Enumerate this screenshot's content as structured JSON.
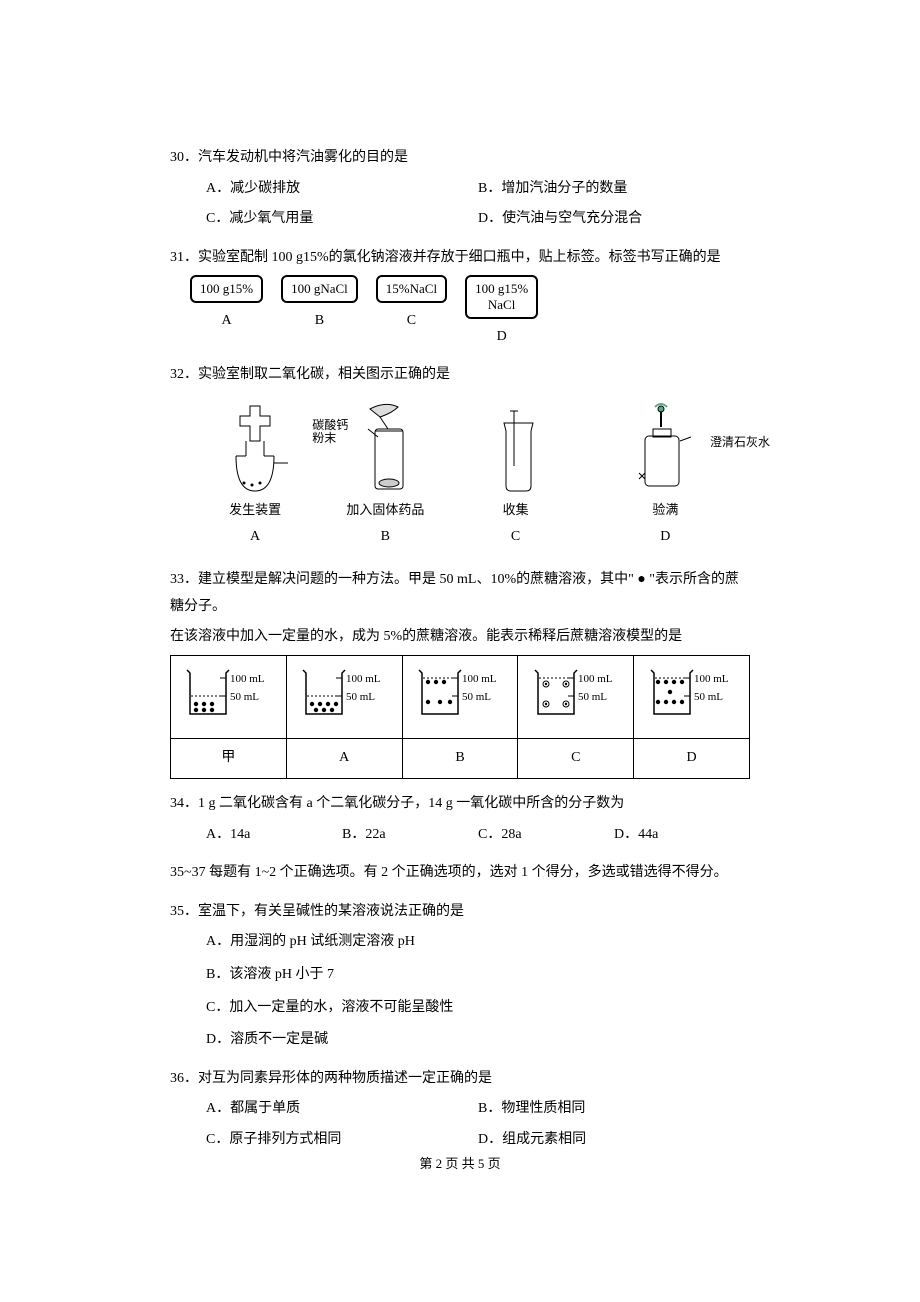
{
  "q30": {
    "text": "30．汽车发动机中将汽油雾化的目的是",
    "opts": {
      "A": "A．减少碳排放",
      "B": "B．增加汽油分子的数量",
      "C": "C．减少氧气用量",
      "D": "D．使汽油与空气充分混合"
    }
  },
  "q31": {
    "text": "31．实验室配制 100 g15%的氯化钠溶液并存放于细口瓶中，贴上标签。标签书写正确的是",
    "labels": {
      "A": "100 g15%",
      "B": "100 gNaCl",
      "C": "15%NaCl",
      "D": "100 g15%\nNaCl"
    },
    "letters": {
      "A": "A",
      "B": "B",
      "C": "C",
      "D": "D"
    }
  },
  "q32": {
    "text": "32．实验室制取二氧化碳，相关图示正确的是",
    "captions": {
      "A": "发生装置",
      "B": "加入固体药品",
      "C": "收集",
      "D": "验满"
    },
    "annot": {
      "B": "碳酸钙\n粉末",
      "D": "澄清石灰水"
    },
    "letters": {
      "A": "A",
      "B": "B",
      "C": "C",
      "D": "D"
    }
  },
  "q33": {
    "text1": "33．建立模型是解决问题的一种方法。甲是 50 mL、10%的蔗糖溶液，其中\" ● \"表示所含的蔗糖分子。",
    "text2": "在该溶液中加入一定量的水，成为 5%的蔗糖溶液。能表示稀释后蔗糖溶液模型的是",
    "cells": {
      "jia": {
        "mark100": "100 mL",
        "mark50": "50 mL",
        "dots_pattern": "bottom6",
        "level": 50
      },
      "A": {
        "mark100": "100 mL",
        "mark50": "50 mL",
        "dots_pattern": "bottom6more",
        "level": 50
      },
      "B": {
        "mark100": "100 mL",
        "mark50": "50 mL",
        "dots_pattern": "spread6",
        "level": 100
      },
      "C": {
        "mark100": "100 mL",
        "mark50": "50 mL",
        "dots_pattern": "ring4",
        "level": 100
      },
      "D": {
        "mark100": "100 mL",
        "mark50": "50 mL",
        "dots_pattern": "dense10",
        "level": 100
      }
    },
    "row2": {
      "jia": "甲",
      "A": "A",
      "B": "B",
      "C": "C",
      "D": "D"
    }
  },
  "q34": {
    "text": "34．1 g 二氧化碳含有 a 个二氧化碳分子，14 g 一氧化碳中所含的分子数为",
    "opts": {
      "A": "A．14a",
      "B": "B．22a",
      "C": "C．28a",
      "D": "D．44a"
    }
  },
  "note35": "35~37 每题有 1~2 个正确选项。有 2 个正确选项的，选对 1 个得分，多选或错选得不得分。",
  "q35": {
    "text": "35．室温下，有关呈碱性的某溶液说法正确的是",
    "opts": {
      "A": "A．用湿润的 pH 试纸测定溶液 pH",
      "B": "B．该溶液 pH 小于 7",
      "C": "C．加入一定量的水，溶液不可能呈酸性",
      "D": "D．溶质不一定是碱"
    }
  },
  "q36": {
    "text": "36．对互为同素异形体的两种物质描述一定正确的是",
    "opts": {
      "A": "A．都属于单质",
      "B": "B．物理性质相同",
      "C": "C．原子排列方式相同",
      "D": "D．组成元素相同"
    }
  },
  "footer": "第 2 页 共 5 页"
}
